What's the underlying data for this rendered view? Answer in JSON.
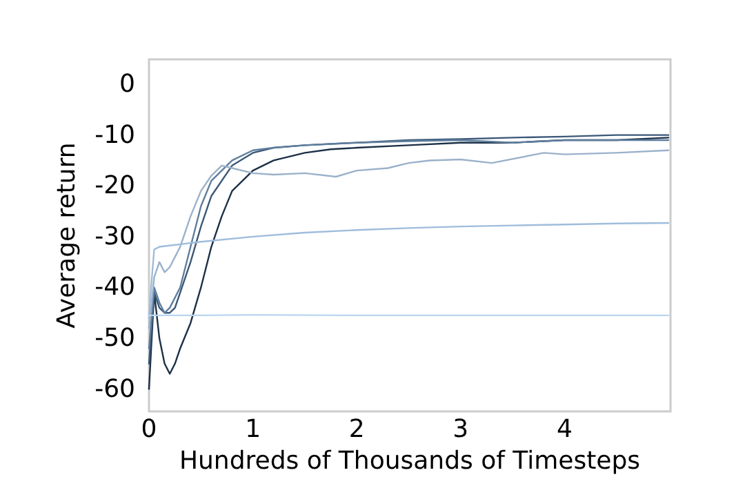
{
  "chart_data": {
    "type": "line",
    "xlabel": "Hundreds of Thousands of Timesteps",
    "ylabel": "Average return",
    "xlim": [
      0,
      5.02
    ],
    "xticks": [
      0,
      1,
      2,
      3,
      4
    ],
    "ylim": [
      -64.4,
      4.9
    ],
    "yticks": [
      -60,
      -50,
      -40,
      -30,
      -20,
      -10,
      0
    ],
    "grid": false,
    "marker": "none",
    "line_style": "solid",
    "series": [
      {
        "color": "#1c3047",
        "x": [
          0,
          0.05,
          0.1,
          0.15,
          0.2,
          0.25,
          0.3,
          0.4,
          0.5,
          0.6,
          0.7,
          0.8,
          1.0,
          1.2,
          1.5,
          1.75,
          2.0,
          2.5,
          3.0,
          3.5,
          4.0,
          4.5,
          5.0
        ],
        "values": [
          -60,
          -41,
          -50,
          -55,
          -57,
          -55,
          -52,
          -47,
          -40,
          -32,
          -26,
          -21,
          -17,
          -15,
          -13.5,
          -12.8,
          -12.5,
          -12,
          -11.5,
          -11.5,
          -11,
          -11,
          -10.5
        ]
      },
      {
        "color": "#3b5878",
        "x": [
          0,
          0.05,
          0.1,
          0.15,
          0.2,
          0.25,
          0.3,
          0.4,
          0.5,
          0.6,
          0.8,
          1.0,
          1.2,
          1.5,
          2.0,
          2.5,
          3.0,
          3.5,
          4.0,
          4.5,
          5.0
        ],
        "values": [
          -55,
          -41,
          -44,
          -45,
          -45,
          -44,
          -41,
          -35,
          -28,
          -22,
          -16,
          -13.5,
          -12.5,
          -12,
          -11.5,
          -11,
          -10.8,
          -10.5,
          -10.3,
          -10,
          -10
        ]
      },
      {
        "color": "#5f7e9e",
        "x": [
          0,
          0.05,
          0.1,
          0.15,
          0.2,
          0.3,
          0.4,
          0.5,
          0.6,
          0.8,
          1.0,
          1.2,
          1.5,
          2.0,
          2.5,
          3.0,
          3.5,
          4.0,
          4.5,
          5.0
        ],
        "values": [
          -52,
          -40,
          -43,
          -45,
          -44,
          -40,
          -32,
          -24,
          -19,
          -15,
          -13,
          -12.5,
          -12,
          -11.5,
          -11.2,
          -11,
          -11.5,
          -11,
          -11,
          -11
        ]
      },
      {
        "color": "#9bb1ca",
        "x": [
          0,
          0.05,
          0.1,
          0.15,
          0.2,
          0.3,
          0.4,
          0.5,
          0.6,
          0.7,
          0.8,
          1.0,
          1.2,
          1.5,
          1.8,
          2.0,
          2.3,
          2.5,
          2.7,
          3.0,
          3.3,
          3.8,
          4.0,
          4.5,
          5.0
        ],
        "values": [
          -48,
          -38,
          -35,
          -37,
          -36,
          -32,
          -26,
          -21,
          -18,
          -16,
          -16.5,
          -17.5,
          -17.8,
          -17.5,
          -18.2,
          -17,
          -16.5,
          -15.5,
          -15,
          -14.8,
          -15.5,
          -13.5,
          -13.8,
          -13.5,
          -13
        ]
      },
      {
        "color": "#9fbcdc",
        "x": [
          0,
          0.02,
          0.05,
          0.1,
          0.3,
          0.5,
          1.0,
          1.5,
          2.0,
          2.5,
          3.0,
          3.5,
          4.0,
          4.5,
          5.0
        ],
        "values": [
          -46,
          -40,
          -32.5,
          -32,
          -31.5,
          -31,
          -30,
          -29.2,
          -28.7,
          -28.3,
          -28,
          -27.8,
          -27.6,
          -27.4,
          -27.3
        ]
      },
      {
        "color": "#b9d5f0",
        "x": [
          0,
          0.05,
          0.5,
          1.0,
          2.0,
          3.0,
          4.0,
          5.0
        ],
        "values": [
          -45.5,
          -45.5,
          -45.5,
          -45.4,
          -45.5,
          -45.5,
          -45.5,
          -45.5
        ]
      }
    ]
  }
}
